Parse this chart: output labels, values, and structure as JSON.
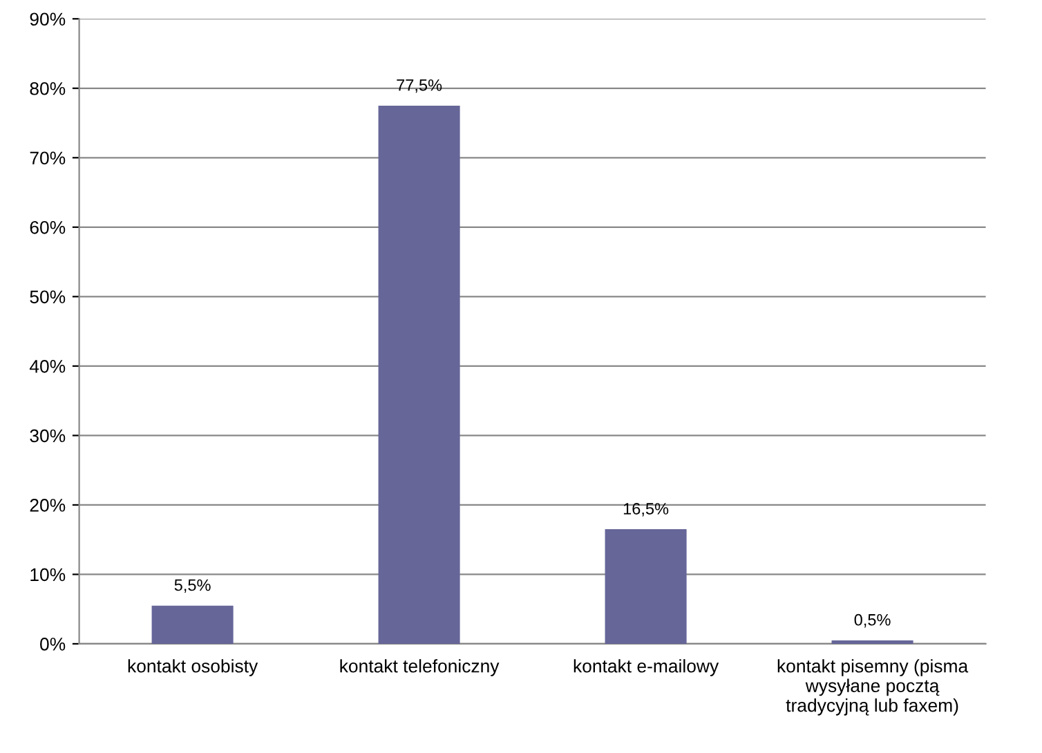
{
  "chart_data": {
    "type": "bar",
    "categories": [
      "kontakt osobisty",
      "kontakt telefoniczny",
      "kontakt e-mailowy",
      "kontakt pisemny (pisma\nwysyłane pocztą\ntradycyjną lub faxem)"
    ],
    "values": [
      5.5,
      77.5,
      16.5,
      0.5
    ],
    "value_labels": [
      "5,5%",
      "77,5%",
      "16,5%",
      "0,5%"
    ],
    "color": "#666699",
    "ylim": [
      0,
      90
    ],
    "yticks": [
      {
        "value": 0,
        "label": "0%"
      },
      {
        "value": 10,
        "label": "10%"
      },
      {
        "value": 20,
        "label": "20%"
      },
      {
        "value": 30,
        "label": "30%"
      },
      {
        "value": 40,
        "label": "40%"
      },
      {
        "value": 50,
        "label": "50%"
      },
      {
        "value": 60,
        "label": "60%"
      },
      {
        "value": 70,
        "label": "70%"
      },
      {
        "value": 80,
        "label": "80%"
      },
      {
        "value": 90,
        "label": "90%"
      }
    ],
    "grid": "y"
  }
}
